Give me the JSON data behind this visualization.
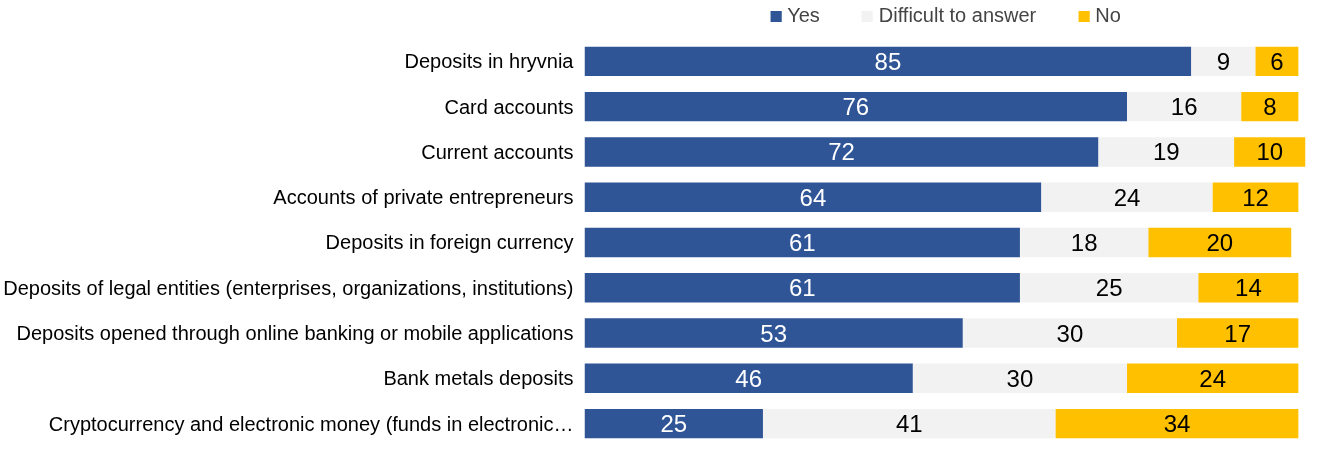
{
  "chart_data": {
    "type": "bar",
    "orientation": "horizontal",
    "stacked": true,
    "data_labels": true,
    "legend": "top",
    "grid": false,
    "tick_labels": "y",
    "xlim": [
      0,
      101
    ],
    "categories": [
      "Deposits in hryvnia",
      "Card accounts",
      "Current accounts",
      "Accounts of private entrepreneurs",
      "Deposits in foreign currency",
      "Deposits of legal entities (enterprises, organizations, institutions)",
      "Deposits opened through online banking or mobile applications",
      "Bank metals deposits",
      "Cryptocurrency and electronic money (funds in electronic…"
    ],
    "series": [
      {
        "name": "Yes",
        "color": "#2f5597",
        "values": [
          85,
          76,
          72,
          64,
          61,
          61,
          53,
          46,
          25
        ]
      },
      {
        "name": "Difficult to answer",
        "color": "#f2f2f2",
        "values": [
          9,
          16,
          19,
          24,
          18,
          25,
          30,
          30,
          41
        ]
      },
      {
        "name": "No",
        "color": "#ffc000",
        "values": [
          6,
          8,
          10,
          12,
          20,
          14,
          17,
          24,
          34
        ]
      }
    ]
  }
}
